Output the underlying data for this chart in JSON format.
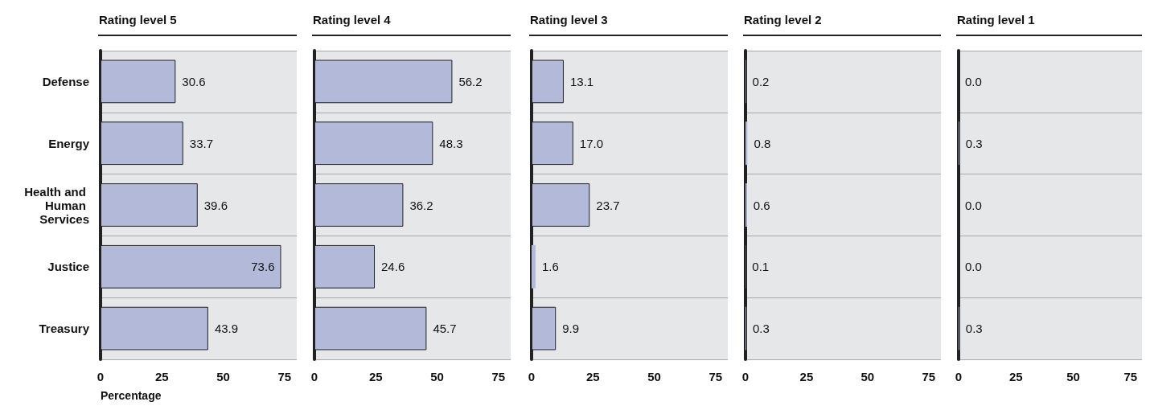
{
  "chart_data": [
    {
      "type": "bar",
      "orientation": "horizontal",
      "title": "Rating level 5",
      "xlabel": "Percentage",
      "categories": [
        "Defense",
        "Energy",
        "Health and Human Services",
        "Justice",
        "Treasury"
      ],
      "color": "#b3b9d9",
      "values": [
        30.6,
        33.7,
        39.6,
        73.6,
        43.9
      ],
      "value_labels": [
        "30.6",
        "33.7",
        "39.6",
        "73.6",
        "43.9"
      ],
      "xlim": [
        0,
        80
      ],
      "xticks": [
        0,
        25,
        50,
        75
      ],
      "grid": "y"
    },
    {
      "type": "bar",
      "orientation": "horizontal",
      "title": "Rating level 4",
      "categories": [
        "Defense",
        "Energy",
        "Health and Human Services",
        "Justice",
        "Treasury"
      ],
      "color": "#b3b9d9",
      "values": [
        56.2,
        48.3,
        36.2,
        24.6,
        45.7
      ],
      "value_labels": [
        "56.2",
        "48.3",
        "36.2",
        "24.6",
        "45.7"
      ],
      "xlim": [
        0,
        80
      ],
      "xticks": [
        0,
        25,
        50,
        75
      ],
      "grid": "y",
      "tick_labels": "x"
    },
    {
      "type": "bar",
      "orientation": "horizontal",
      "title": "Rating level 3",
      "categories": [
        "Defense",
        "Energy",
        "Health and Human Services",
        "Justice",
        "Treasury"
      ],
      "color": "#b3b9d9",
      "values": [
        13.1,
        17.0,
        23.7,
        1.6,
        9.9
      ],
      "value_labels": [
        "13.1",
        "17.0",
        "23.7",
        "1.6",
        "9.9"
      ],
      "xlim": [
        0,
        80
      ],
      "xticks": [
        0,
        25,
        50,
        75
      ],
      "grid": "y",
      "tick_labels": "x"
    },
    {
      "type": "bar",
      "orientation": "horizontal",
      "title": "Rating level 2",
      "categories": [
        "Defense",
        "Energy",
        "Health and Human Services",
        "Justice",
        "Treasury"
      ],
      "color": "#b3b9d9",
      "values": [
        0.2,
        0.8,
        0.6,
        0.1,
        0.3
      ],
      "value_labels": [
        "0.2",
        "0.8",
        "0.6",
        "0.1",
        "0.3"
      ],
      "xlim": [
        0,
        80
      ],
      "xticks": [
        0,
        25,
        50,
        75
      ],
      "grid": "y",
      "tick_labels": "x"
    },
    {
      "type": "bar",
      "orientation": "horizontal",
      "title": "Rating level 1",
      "categories": [
        "Defense",
        "Energy",
        "Health and Human Services",
        "Justice",
        "Treasury"
      ],
      "color": "#b3b9d9",
      "values": [
        0.0,
        0.3,
        0.0,
        0.0,
        0.3
      ],
      "value_labels": [
        "0.0",
        "0.3",
        "0.0",
        "0.0",
        "0.3"
      ],
      "xlim": [
        0,
        80
      ],
      "xticks": [
        0,
        25,
        50,
        75
      ],
      "grid": "y",
      "tick_labels": "x"
    }
  ]
}
